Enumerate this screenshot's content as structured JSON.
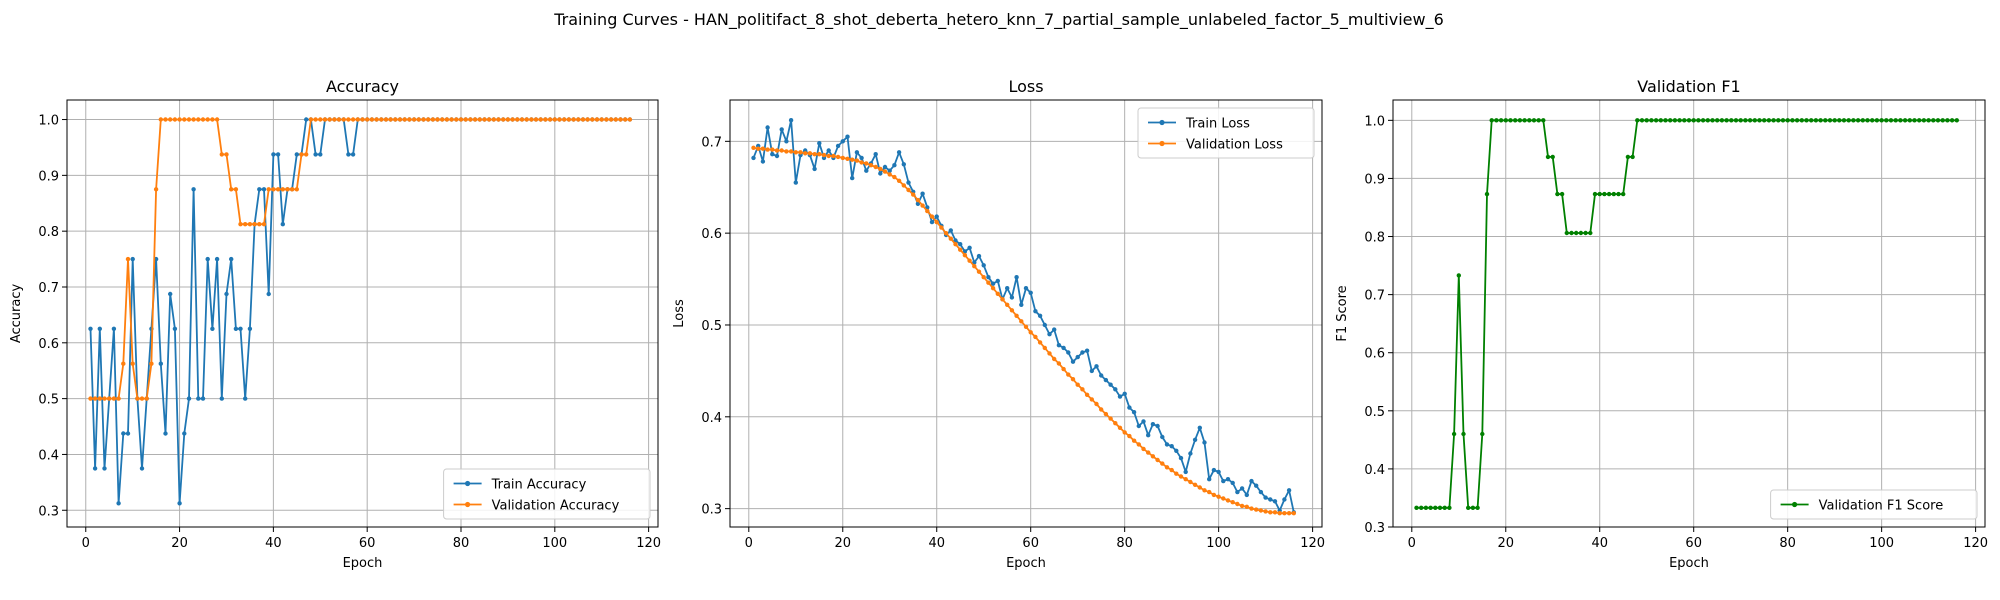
{
  "suptitle": "Training Curves - HAN_politifact_8_shot_deberta_hetero_knn_7_partial_sample_unlabeled_factor_5_multiview_6",
  "chart_data": [
    {
      "type": "line",
      "title": "Accuracy",
      "xlabel": "Epoch",
      "ylabel": "Accuracy",
      "xlim": [
        -4,
        122
      ],
      "ylim": [
        0.27,
        1.035
      ],
      "xticks": [
        0,
        20,
        40,
        60,
        80,
        100,
        120
      ],
      "yticks": [
        0.3,
        0.4,
        0.5,
        0.6,
        0.7,
        0.8,
        0.9,
        1.0
      ],
      "grid": true,
      "legend": "lower right",
      "series": [
        {
          "name": "Train Accuracy",
          "color": "#1f77b4",
          "values": [
            0.625,
            0.375,
            0.625,
            0.375,
            0.5,
            0.625,
            0.3125,
            0.4375,
            0.4375,
            0.75,
            0.5,
            0.375,
            0.5,
            0.625,
            0.75,
            0.5625,
            0.4375,
            0.6875,
            0.625,
            0.3125,
            0.4375,
            0.5,
            0.875,
            0.5,
            0.5,
            0.75,
            0.625,
            0.75,
            0.5,
            0.6875,
            0.75,
            0.625,
            0.625,
            0.5,
            0.625,
            0.8125,
            0.875,
            0.875,
            0.6875,
            0.9375,
            0.9375,
            0.8125,
            0.875,
            0.875,
            0.9375,
            0.9375,
            1.0,
            1.0,
            0.9375,
            0.9375,
            1.0,
            1.0,
            1.0,
            1.0,
            1.0,
            0.9375,
            0.9375,
            1.0,
            1.0,
            1.0,
            1.0,
            1.0,
            1.0,
            1.0,
            1.0,
            1.0,
            1.0,
            1.0,
            1.0,
            1.0,
            1.0,
            1.0,
            1.0,
            1.0,
            1.0,
            1.0,
            1.0,
            1.0,
            1.0,
            1.0,
            1.0,
            1.0,
            1.0,
            1.0,
            1.0,
            1.0,
            1.0,
            1.0,
            1.0,
            1.0,
            1.0,
            1.0,
            1.0,
            1.0,
            1.0,
            1.0,
            1.0,
            1.0,
            1.0,
            1.0,
            1.0,
            1.0,
            1.0,
            1.0,
            1.0,
            1.0,
            1.0,
            1.0,
            1.0,
            1.0,
            1.0,
            1.0,
            1.0,
            1.0,
            1.0,
            1.0
          ]
        },
        {
          "name": "Validation Accuracy",
          "color": "#ff7f0e",
          "values": [
            0.5,
            0.5,
            0.5,
            0.5,
            0.5,
            0.5,
            0.5,
            0.5625,
            0.75,
            0.5625,
            0.5,
            0.5,
            0.5,
            0.5625,
            0.875,
            1.0,
            1.0,
            1.0,
            1.0,
            1.0,
            1.0,
            1.0,
            1.0,
            1.0,
            1.0,
            1.0,
            1.0,
            1.0,
            0.9375,
            0.9375,
            0.875,
            0.875,
            0.8125,
            0.8125,
            0.8125,
            0.8125,
            0.8125,
            0.8125,
            0.875,
            0.875,
            0.875,
            0.875,
            0.875,
            0.875,
            0.875,
            0.9375,
            0.9375,
            1.0,
            1.0,
            1.0,
            1.0,
            1.0,
            1.0,
            1.0,
            1.0,
            1.0,
            1.0,
            1.0,
            1.0,
            1.0,
            1.0,
            1.0,
            1.0,
            1.0,
            1.0,
            1.0,
            1.0,
            1.0,
            1.0,
            1.0,
            1.0,
            1.0,
            1.0,
            1.0,
            1.0,
            1.0,
            1.0,
            1.0,
            1.0,
            1.0,
            1.0,
            1.0,
            1.0,
            1.0,
            1.0,
            1.0,
            1.0,
            1.0,
            1.0,
            1.0,
            1.0,
            1.0,
            1.0,
            1.0,
            1.0,
            1.0,
            1.0,
            1.0,
            1.0,
            1.0,
            1.0,
            1.0,
            1.0,
            1.0,
            1.0,
            1.0,
            1.0,
            1.0,
            1.0,
            1.0,
            1.0,
            1.0,
            1.0,
            1.0,
            1.0,
            1.0
          ]
        }
      ]
    },
    {
      "type": "line",
      "title": "Loss",
      "xlabel": "Epoch",
      "ylabel": "Loss",
      "xlim": [
        -4,
        122
      ],
      "ylim": [
        0.28,
        0.745
      ],
      "xticks": [
        0,
        20,
        40,
        60,
        80,
        100,
        120
      ],
      "yticks": [
        0.3,
        0.4,
        0.5,
        0.6,
        0.7
      ],
      "grid": true,
      "legend": "upper right",
      "series": [
        {
          "name": "Train Loss",
          "color": "#1f77b4",
          "values": [
            0.682,
            0.695,
            0.678,
            0.715,
            0.686,
            0.684,
            0.713,
            0.7,
            0.723,
            0.655,
            0.685,
            0.69,
            0.685,
            0.67,
            0.698,
            0.682,
            0.69,
            0.682,
            0.695,
            0.7,
            0.705,
            0.66,
            0.688,
            0.682,
            0.668,
            0.676,
            0.686,
            0.665,
            0.672,
            0.668,
            0.674,
            0.688,
            0.675,
            0.655,
            0.645,
            0.632,
            0.643,
            0.628,
            0.612,
            0.618,
            0.608,
            0.598,
            0.603,
            0.592,
            0.588,
            0.58,
            0.584,
            0.568,
            0.575,
            0.565,
            0.552,
            0.545,
            0.548,
            0.528,
            0.54,
            0.53,
            0.552,
            0.522,
            0.54,
            0.535,
            0.515,
            0.51,
            0.5,
            0.49,
            0.495,
            0.478,
            0.475,
            0.47,
            0.46,
            0.465,
            0.47,
            0.472,
            0.45,
            0.455,
            0.445,
            0.44,
            0.435,
            0.43,
            0.422,
            0.425,
            0.41,
            0.405,
            0.39,
            0.395,
            0.38,
            0.392,
            0.39,
            0.378,
            0.37,
            0.368,
            0.363,
            0.355,
            0.34,
            0.36,
            0.375,
            0.388,
            0.372,
            0.332,
            0.342,
            0.34,
            0.33,
            0.332,
            0.328,
            0.318,
            0.322,
            0.315,
            0.33,
            0.325,
            0.318,
            0.312,
            0.31,
            0.308,
            0.298,
            0.31,
            0.32,
            0.296
          ]
        },
        {
          "name": "Validation Loss",
          "color": "#ff7f0e",
          "values": [
            0.693,
            0.692,
            0.692,
            0.691,
            0.691,
            0.69,
            0.69,
            0.689,
            0.689,
            0.688,
            0.688,
            0.687,
            0.687,
            0.686,
            0.686,
            0.685,
            0.684,
            0.684,
            0.683,
            0.682,
            0.681,
            0.68,
            0.679,
            0.677,
            0.676,
            0.674,
            0.672,
            0.67,
            0.667,
            0.664,
            0.661,
            0.657,
            0.652,
            0.647,
            0.642,
            0.636,
            0.63,
            0.624,
            0.618,
            0.612,
            0.606,
            0.6,
            0.594,
            0.588,
            0.582,
            0.576,
            0.57,
            0.564,
            0.558,
            0.552,
            0.546,
            0.54,
            0.534,
            0.528,
            0.522,
            0.516,
            0.51,
            0.504,
            0.498,
            0.492,
            0.487,
            0.481,
            0.475,
            0.469,
            0.463,
            0.458,
            0.452,
            0.446,
            0.441,
            0.435,
            0.43,
            0.424,
            0.419,
            0.414,
            0.408,
            0.403,
            0.398,
            0.393,
            0.388,
            0.383,
            0.379,
            0.374,
            0.37,
            0.365,
            0.361,
            0.357,
            0.353,
            0.349,
            0.345,
            0.342,
            0.338,
            0.335,
            0.332,
            0.329,
            0.326,
            0.323,
            0.32,
            0.318,
            0.315,
            0.313,
            0.311,
            0.309,
            0.307,
            0.305,
            0.303,
            0.302,
            0.3,
            0.299,
            0.298,
            0.297,
            0.296,
            0.296,
            0.295,
            0.295,
            0.295,
            0.295
          ]
        }
      ]
    },
    {
      "type": "line",
      "title": "Validation F1",
      "xlabel": "Epoch",
      "ylabel": "F1 Score",
      "xlim": [
        -4,
        122
      ],
      "ylim": [
        0.3,
        1.035
      ],
      "xticks": [
        0,
        20,
        40,
        60,
        80,
        100,
        120
      ],
      "yticks": [
        0.3,
        0.4,
        0.5,
        0.6,
        0.7,
        0.8,
        0.9,
        1.0
      ],
      "grid": true,
      "legend": "lower right",
      "series": [
        {
          "name": "Validation F1 Score",
          "color": "#008000",
          "values": [
            0.333,
            0.333,
            0.333,
            0.333,
            0.333,
            0.333,
            0.333,
            0.333,
            0.46,
            0.733,
            0.46,
            0.333,
            0.333,
            0.333,
            0.46,
            0.873,
            1.0,
            1.0,
            1.0,
            1.0,
            1.0,
            1.0,
            1.0,
            1.0,
            1.0,
            1.0,
            1.0,
            1.0,
            0.937,
            0.937,
            0.873,
            0.873,
            0.806,
            0.806,
            0.806,
            0.806,
            0.806,
            0.806,
            0.873,
            0.873,
            0.873,
            0.873,
            0.873,
            0.873,
            0.873,
            0.937,
            0.937,
            1.0,
            1.0,
            1.0,
            1.0,
            1.0,
            1.0,
            1.0,
            1.0,
            1.0,
            1.0,
            1.0,
            1.0,
            1.0,
            1.0,
            1.0,
            1.0,
            1.0,
            1.0,
            1.0,
            1.0,
            1.0,
            1.0,
            1.0,
            1.0,
            1.0,
            1.0,
            1.0,
            1.0,
            1.0,
            1.0,
            1.0,
            1.0,
            1.0,
            1.0,
            1.0,
            1.0,
            1.0,
            1.0,
            1.0,
            1.0,
            1.0,
            1.0,
            1.0,
            1.0,
            1.0,
            1.0,
            1.0,
            1.0,
            1.0,
            1.0,
            1.0,
            1.0,
            1.0,
            1.0,
            1.0,
            1.0,
            1.0,
            1.0,
            1.0,
            1.0,
            1.0,
            1.0,
            1.0,
            1.0,
            1.0,
            1.0,
            1.0,
            1.0,
            1.0
          ]
        }
      ]
    }
  ]
}
